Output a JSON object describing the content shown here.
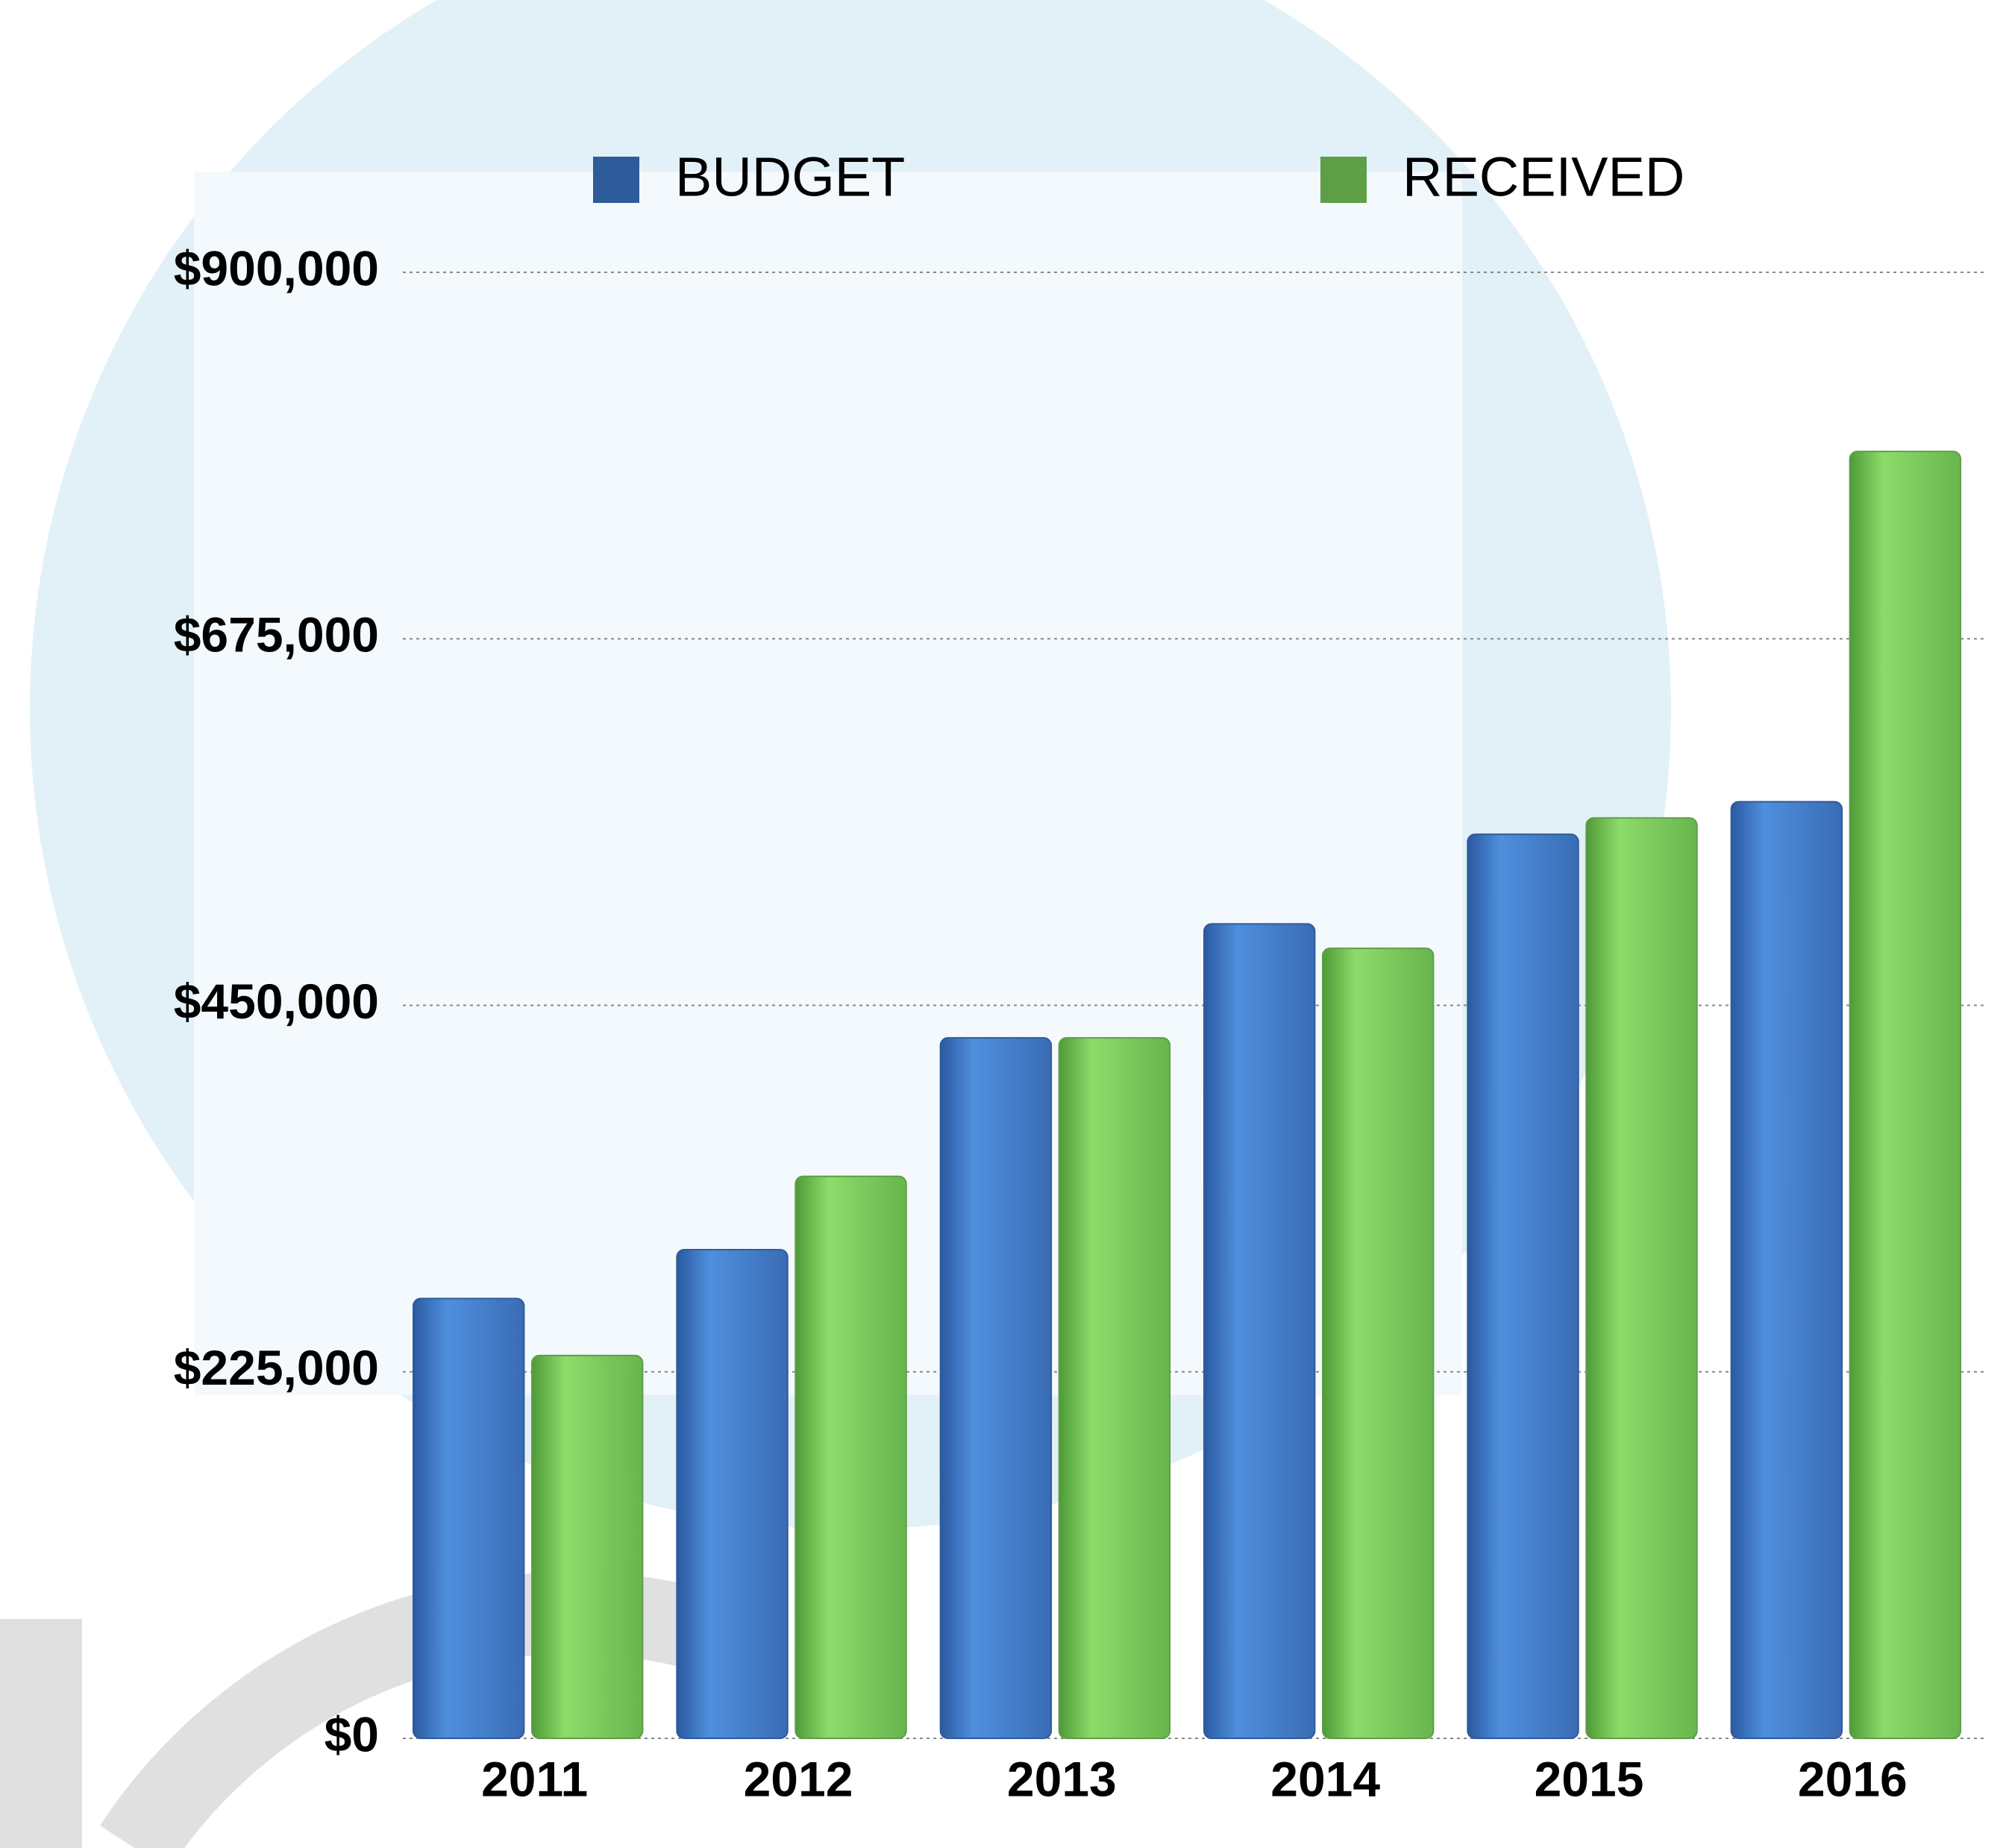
{
  "chart_data": {
    "type": "bar",
    "categories": [
      "2011",
      "2012",
      "2013",
      "2014",
      "2015",
      "2016"
    ],
    "series": [
      {
        "name": "BUDGET",
        "color": "#2e5b9a",
        "values": [
          270000,
          300000,
          430000,
          500000,
          555000,
          575000
        ]
      },
      {
        "name": "RECEIVED",
        "color": "#5e9e47",
        "values": [
          235000,
          345000,
          430000,
          485000,
          565000,
          790000
        ]
      }
    ],
    "ylim": [
      0,
      900000
    ],
    "yticks": [
      {
        "value": 0,
        "label": "$0"
      },
      {
        "value": 225000,
        "label": "$225,000"
      },
      {
        "value": 450000,
        "label": "$450,000"
      },
      {
        "value": 675000,
        "label": "$675,000"
      },
      {
        "value": 900000,
        "label": "$900,000"
      }
    ],
    "grid": true
  }
}
